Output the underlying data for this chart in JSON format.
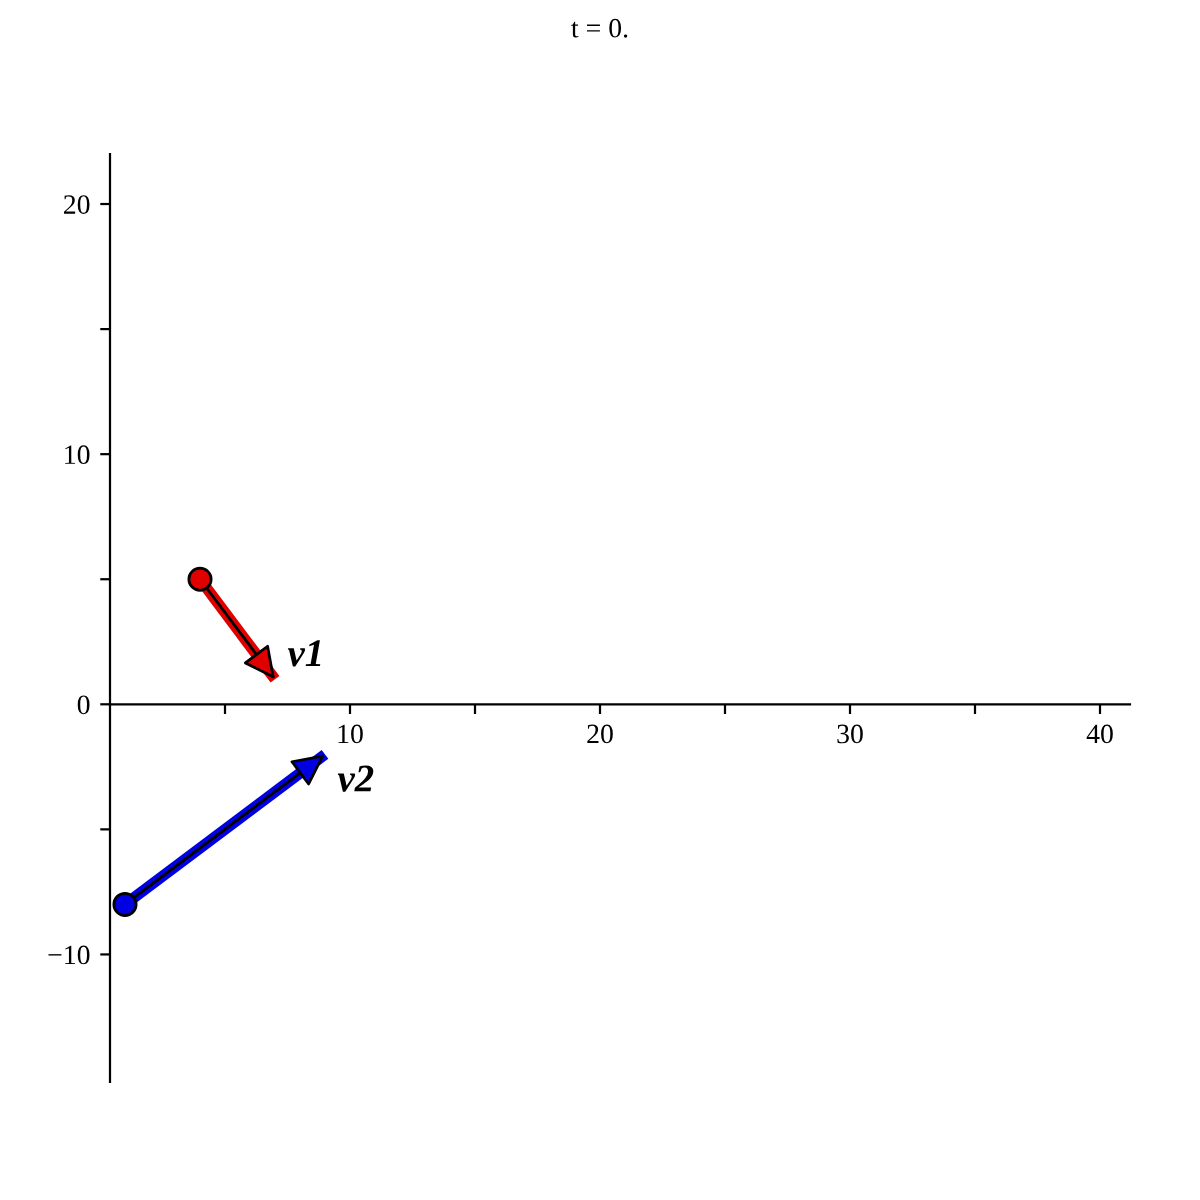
{
  "chart_data": {
    "type": "line",
    "title": "t = 0.",
    "series": [
      {
        "name": "v1",
        "color": "#e00000",
        "x": [
          4,
          7
        ],
        "values": [
          5,
          1
        ]
      },
      {
        "name": "v2",
        "color": "#0000e0",
        "x": [
          1,
          9
        ],
        "values": [
          -8,
          -2
        ]
      }
    ],
    "xlim": [
      0.4,
      41.2
    ],
    "ylim": [
      -15.1,
      22
    ],
    "xticks": [
      {
        "value": 5,
        "label": null
      },
      10,
      {
        "value": 15,
        "label": null
      },
      20,
      {
        "value": 25,
        "label": null
      },
      30,
      {
        "value": 35,
        "label": null
      },
      40
    ],
    "yticks": [
      -10,
      {
        "value": -5,
        "label": null
      },
      0,
      {
        "value": 5,
        "label": null
      },
      10,
      {
        "value": 15,
        "label": null
      },
      20
    ],
    "marker": "circle",
    "grid": false,
    "legend": "left"
  }
}
